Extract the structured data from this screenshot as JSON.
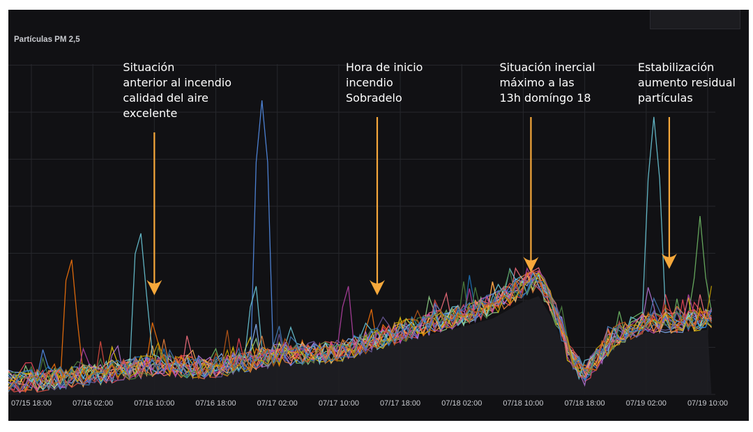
{
  "chart_data": {
    "type": "line",
    "title": "Partículas PM 2,5",
    "x_ticks": [
      "07/15 18:00",
      "07/16 02:00",
      "07/16 10:00",
      "07/16 18:00",
      "07/17 02:00",
      "07/17 10:00",
      "07/17 18:00",
      "07/18 02:00",
      "07/18 10:00",
      "07/18 18:00",
      "07/19 02:00",
      "07/19 10:00"
    ],
    "x_range": [
      "2021-07-15 18:00",
      "2021-07-19 10:30"
    ],
    "grid": true,
    "legend": "hidden (collapsed box top-right)",
    "series_colors": [
      "#73bf69",
      "#f2cc0c",
      "#8ab8ff",
      "#ff780a",
      "#f2495c",
      "#5794f2",
      "#b877d9",
      "#96d98d",
      "#ffb357",
      "#ff7383",
      "#6ed0e0",
      "#ef843c",
      "#e24d42",
      "#1f78c1",
      "#ba43a9",
      "#705da0",
      "#508642",
      "#cca300",
      "#447ebc",
      "#c15c17"
    ],
    "trend_level": {
      "x": [
        "07/15 18:00",
        "07/16 02:00",
        "07/16 10:00",
        "07/16 18:00",
        "07/17 02:00",
        "07/17 10:00",
        "07/17 14:00",
        "07/17 18:00",
        "07/18 02:00",
        "07/18 06:00",
        "07/18 10:00",
        "07/18 12:00",
        "07/18 14:00",
        "07/18 16:00",
        "07/18 18:00",
        "07/18 20:00",
        "07/18 22:00",
        "07/19 02:00",
        "07/19 06:00",
        "07/19 10:00"
      ],
      "relative_level": [
        0.04,
        0.06,
        0.09,
        0.08,
        0.12,
        0.13,
        0.16,
        0.19,
        0.24,
        0.27,
        0.33,
        0.35,
        0.26,
        0.12,
        0.06,
        0.12,
        0.18,
        0.22,
        0.22,
        0.23
      ]
    },
    "peaks": [
      {
        "x": "07/15 23:00",
        "relative_level": 0.47,
        "color": "#ff780a"
      },
      {
        "x": "07/16 08:00",
        "relative_level": 0.55,
        "color": "#6ed0e0"
      },
      {
        "x": "07/16 10:00",
        "relative_level": 0.28,
        "color": "#ff780a"
      },
      {
        "x": "07/16 23:00",
        "relative_level": 0.39,
        "color": "#6ed0e0"
      },
      {
        "x": "07/17 00:00",
        "relative_level": 0.89,
        "color": "#5794f2"
      },
      {
        "x": "07/17 11:00",
        "relative_level": 0.39,
        "color": "#ba43a9"
      },
      {
        "x": "07/17 14:00",
        "relative_level": 0.32,
        "color": "#ff780a"
      },
      {
        "x": "07/18 11:00",
        "relative_level": 0.4,
        "color": "#508642"
      },
      {
        "x": "07/19 03:00",
        "relative_level": 0.84,
        "color": "#6ed0e0"
      },
      {
        "x": "07/19 09:00",
        "relative_level": 0.54,
        "color": "#73bf69"
      }
    ],
    "annotations": [
      {
        "lines": [
          "Situación",
          "anterior al incendio",
          "calidad del aire",
          "excelente"
        ],
        "x": "07/16 10:00",
        "arrow_level": 0.3
      },
      {
        "lines": [
          "Hora de inicio",
          "incendio",
          "Sobradelo"
        ],
        "x": "07/17 15:00",
        "arrow_level": 0.3
      },
      {
        "lines": [
          "Situación inercial",
          "máximo a las",
          "13h domíngo 18"
        ],
        "x": "07/18 11:00",
        "arrow_level": 0.37
      },
      {
        "lines": [
          "Estabilización",
          "aumento residual",
          "partículas"
        ],
        "x": "07/19 05:00",
        "arrow_level": 0.38
      }
    ]
  }
}
